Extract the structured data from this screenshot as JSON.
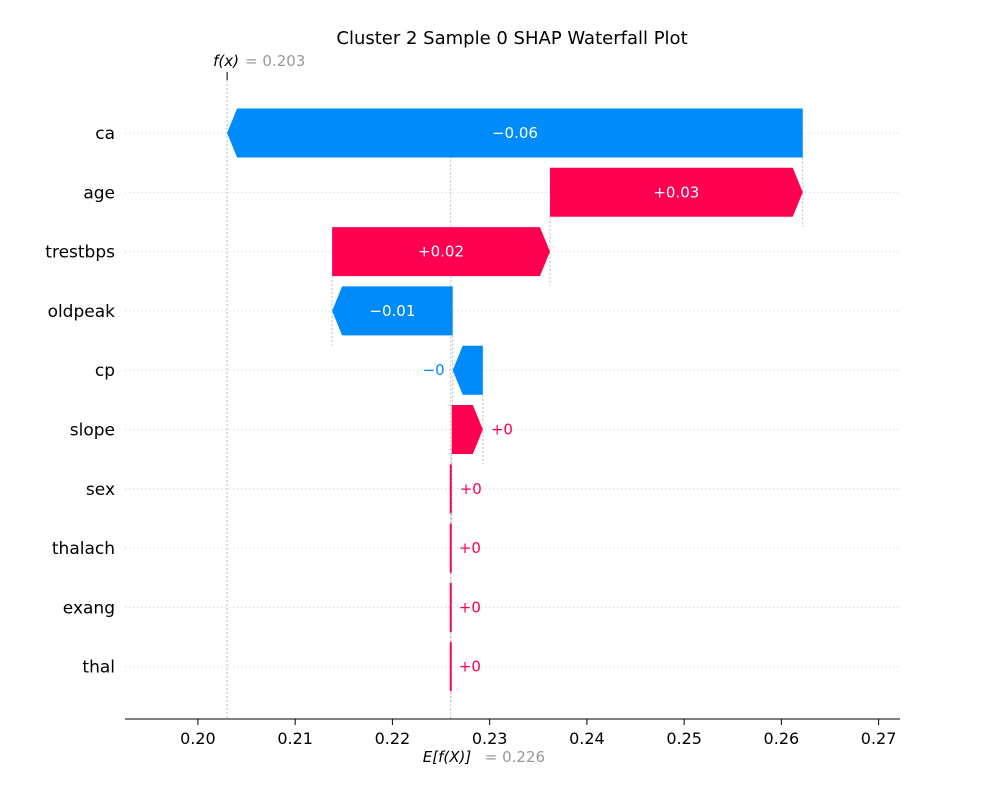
{
  "chart_data": {
    "type": "waterfall",
    "title": "Cluster 2 Sample 0 SHAP Waterfall Plot",
    "xlim": [
      0.1925,
      0.2722
    ],
    "xticks": [
      "0.20",
      "0.21",
      "0.22",
      "0.23",
      "0.24",
      "0.25",
      "0.26",
      "0.27"
    ],
    "xtick_values": [
      0.2,
      0.21,
      0.22,
      0.23,
      0.24,
      0.25,
      0.26,
      0.27
    ],
    "base_value": 0.226,
    "base_label_key": "E[f(X)]",
    "base_label_value": "= 0.226",
    "output_value": 0.203,
    "output_label_key": "f(x)",
    "output_label_value": "= 0.203",
    "grid": true,
    "colors": {
      "positive": "#ff0051",
      "negative": "#008bfb"
    },
    "features": [
      {
        "name": "ca",
        "start": 0.2622,
        "end": 0.203,
        "label": "−0.06"
      },
      {
        "name": "age",
        "start": 0.2362,
        "end": 0.2622,
        "label": "+0.03"
      },
      {
        "name": "trestbps",
        "start": 0.2138,
        "end": 0.2362,
        "label": "+0.02"
      },
      {
        "name": "oldpeak",
        "start": 0.2262,
        "end": 0.2138,
        "label": "−0.01"
      },
      {
        "name": "cp",
        "start": 0.2293,
        "end": 0.2262,
        "label": "−0"
      },
      {
        "name": "slope",
        "start": 0.2261,
        "end": 0.2293,
        "label": "+0"
      },
      {
        "name": "sex",
        "start": 0.226,
        "end": 0.2261,
        "label": "+0"
      },
      {
        "name": "thalach",
        "start": 0.226,
        "end": 0.226,
        "label": "+0"
      },
      {
        "name": "exang",
        "start": 0.226,
        "end": 0.226,
        "label": "+0"
      },
      {
        "name": "thal",
        "start": 0.226,
        "end": 0.226,
        "label": "+0"
      }
    ]
  }
}
